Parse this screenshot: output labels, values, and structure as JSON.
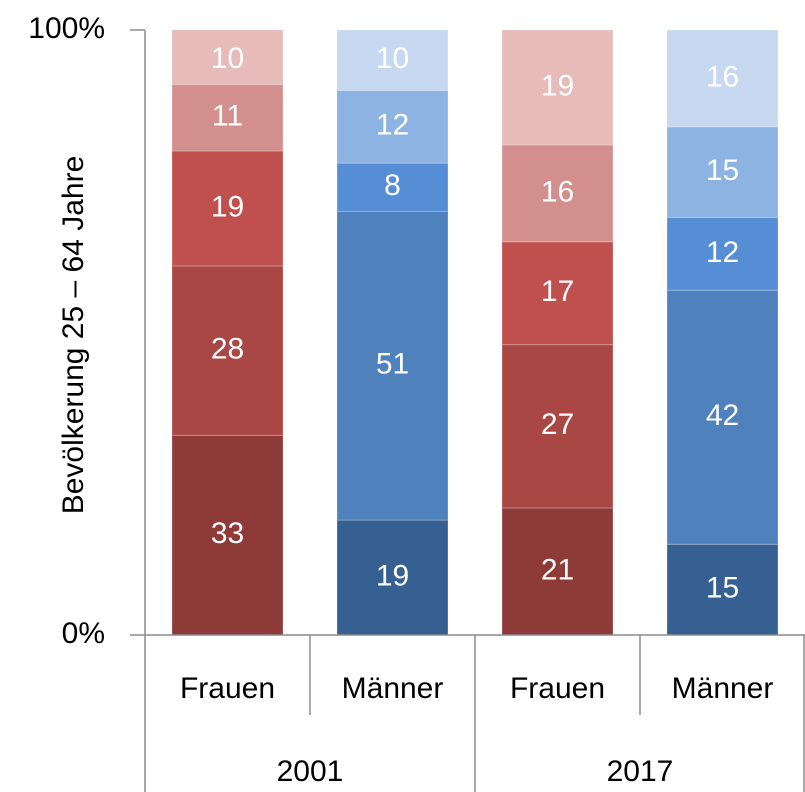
{
  "chart_data": {
    "type": "bar",
    "stacked": true,
    "ylabel": "Bevölkerung 25 – 64 Jahre",
    "categories": [
      "Frauen",
      "Männer",
      "Frauen",
      "Männer"
    ],
    "groups": [
      "2001",
      "2017"
    ],
    "series": [
      {
        "values": [
          33,
          19,
          21,
          15
        ],
        "colors": [
          "#8e3a38",
          "#376092",
          "#8e3a38",
          "#376092"
        ]
      },
      {
        "values": [
          28,
          51,
          27,
          42
        ],
        "colors": [
          "#a94745",
          "#4f81bd",
          "#a94745",
          "#4f81bd"
        ]
      },
      {
        "values": [
          19,
          8,
          17,
          12
        ],
        "colors": [
          "#c0504d",
          "#558ed5",
          "#c0504d",
          "#558ed5"
        ]
      },
      {
        "values": [
          11,
          12,
          16,
          15
        ],
        "colors": [
          "#d38f8d",
          "#8db3e2",
          "#d38f8d",
          "#8db3e2"
        ]
      },
      {
        "values": [
          10,
          10,
          19,
          16
        ],
        "colors": [
          "#e6bbba",
          "#c6d9f1",
          "#e6bbba",
          "#c6d9f1"
        ]
      }
    ],
    "ylim": [
      0,
      100
    ],
    "yticks": [
      {
        "value": 0,
        "label": "0%"
      },
      {
        "value": 100,
        "label": "100%"
      }
    ]
  }
}
